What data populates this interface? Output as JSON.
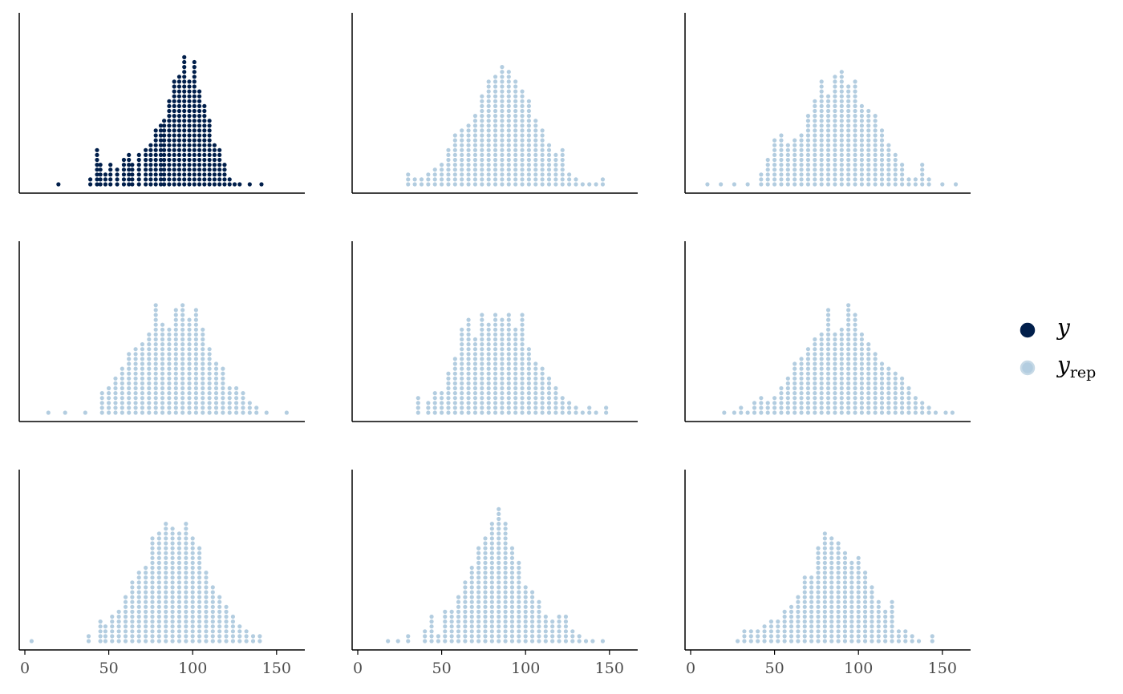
{
  "chart_data": {
    "type": "dotplot",
    "facet_grid": {
      "rows": 3,
      "cols": 3,
      "x_axis_shown_on_bottom_row": true
    },
    "xlim": [
      0,
      160
    ],
    "x_ticks": [
      "0",
      "50",
      "100",
      "150"
    ],
    "y_axis_labels": false,
    "grid": false,
    "legend_position": "right",
    "colors": {
      "y": "#011f4b",
      "y_rep": "#b3cde0",
      "axis": "#000000",
      "tick_text": "#4d4d4d"
    },
    "series": [
      {
        "name": "y",
        "legend_text": "y",
        "panels": [
          0
        ],
        "x": [
          20,
          39,
          43,
          45,
          48,
          51,
          55,
          59,
          62,
          64,
          68,
          72,
          75,
          78,
          81,
          83,
          86,
          89,
          92,
          95,
          98,
          101,
          104,
          107,
          110,
          113,
          116,
          119,
          122,
          125,
          128,
          134,
          141
        ],
        "counts": [
          1,
          2,
          8,
          5,
          3,
          5,
          4,
          6,
          7,
          5,
          7,
          8,
          9,
          12,
          13,
          14,
          18,
          22,
          23,
          27,
          22,
          26,
          20,
          17,
          14,
          9,
          8,
          5,
          2,
          1,
          1,
          1,
          1
        ]
      },
      {
        "name": "y_rep",
        "legend_text": "y",
        "legend_subscript": "rep",
        "panels": [
          1,
          2,
          3,
          4,
          5,
          6,
          7,
          8
        ],
        "replicates": [
          {
            "panel": 1,
            "x": [
              30,
              34,
              38,
              42,
              46,
              50,
              54,
              58,
              62,
              66,
              70,
              74,
              78,
              82,
              86,
              90,
              94,
              98,
              102,
              106,
              110,
              114,
              118,
              122,
              126,
              130,
              134,
              138,
              142,
              146
            ],
            "counts": [
              3,
              2,
              2,
              3,
              4,
              5,
              8,
              11,
              12,
              13,
              15,
              19,
              22,
              23,
              25,
              24,
              22,
              20,
              18,
              14,
              12,
              9,
              7,
              8,
              3,
              2,
              1,
              1,
              1,
              2
            ]
          },
          {
            "panel": 2,
            "x": [
              10,
              18,
              26,
              34,
              42,
              46,
              50,
              54,
              58,
              62,
              66,
              70,
              74,
              78,
              82,
              86,
              90,
              94,
              98,
              102,
              106,
              110,
              114,
              118,
              122,
              126,
              130,
              134,
              138,
              142,
              150,
              158
            ],
            "counts": [
              1,
              1,
              1,
              1,
              3,
              6,
              10,
              11,
              9,
              10,
              11,
              15,
              18,
              22,
              19,
              23,
              24,
              21,
              22,
              17,
              16,
              15,
              12,
              9,
              7,
              5,
              2,
              2,
              5,
              2,
              1,
              1
            ]
          },
          {
            "panel": 3,
            "x": [
              14,
              24,
              36,
              46,
              50,
              54,
              58,
              62,
              66,
              70,
              74,
              78,
              82,
              86,
              90,
              94,
              98,
              102,
              106,
              110,
              114,
              118,
              122,
              126,
              130,
              134,
              138,
              144,
              156
            ],
            "counts": [
              1,
              1,
              1,
              5,
              6,
              8,
              10,
              13,
              14,
              15,
              17,
              23,
              19,
              18,
              22,
              23,
              20,
              22,
              18,
              14,
              11,
              10,
              6,
              6,
              5,
              3,
              2,
              1,
              1
            ]
          },
          {
            "panel": 4,
            "x": [
              36,
              42,
              46,
              50,
              54,
              58,
              62,
              66,
              70,
              74,
              78,
              82,
              86,
              90,
              94,
              98,
              102,
              106,
              110,
              114,
              118,
              122,
              126,
              130,
              134,
              138,
              142,
              148
            ],
            "counts": [
              4,
              3,
              5,
              5,
              9,
              12,
              18,
              20,
              16,
              21,
              19,
              21,
              20,
              21,
              18,
              21,
              14,
              11,
              10,
              8,
              6,
              4,
              3,
              2,
              1,
              2,
              1,
              2
            ]
          },
          {
            "panel": 5,
            "x": [
              20,
              26,
              30,
              34,
              38,
              42,
              46,
              50,
              54,
              58,
              62,
              66,
              70,
              74,
              78,
              82,
              86,
              90,
              94,
              98,
              102,
              106,
              110,
              114,
              118,
              122,
              126,
              130,
              134,
              138,
              142,
              146,
              152,
              156
            ],
            "counts": [
              1,
              1,
              2,
              1,
              3,
              4,
              3,
              4,
              6,
              8,
              11,
              12,
              14,
              16,
              17,
              22,
              17,
              18,
              23,
              21,
              17,
              15,
              13,
              11,
              10,
              9,
              8,
              6,
              4,
              3,
              2,
              1,
              1,
              1
            ]
          },
          {
            "panel": 6,
            "x": [
              4,
              38,
              45,
              48,
              52,
              56,
              60,
              64,
              68,
              72,
              76,
              80,
              84,
              88,
              92,
              96,
              100,
              104,
              108,
              112,
              116,
              120,
              124,
              128,
              132,
              136,
              140
            ],
            "counts": [
              1,
              2,
              5,
              4,
              6,
              7,
              10,
              13,
              15,
              16,
              22,
              23,
              25,
              24,
              23,
              25,
              22,
              20,
              15,
              12,
              10,
              8,
              6,
              4,
              3,
              2,
              2
            ]
          },
          {
            "panel": 7,
            "x": [
              18,
              24,
              30,
              40,
              44,
              48,
              52,
              56,
              60,
              64,
              68,
              72,
              76,
              80,
              84,
              88,
              92,
              96,
              100,
              104,
              108,
              112,
              116,
              120,
              124,
              128,
              132,
              136,
              140,
              146
            ],
            "counts": [
              1,
              1,
              2,
              3,
              6,
              2,
              7,
              7,
              10,
              13,
              16,
              20,
              22,
              25,
              28,
              25,
              20,
              17,
              12,
              11,
              9,
              6,
              5,
              6,
              6,
              3,
              2,
              1,
              1,
              1
            ]
          },
          {
            "panel": 8,
            "x": [
              28,
              32,
              36,
              40,
              44,
              48,
              52,
              56,
              60,
              64,
              68,
              72,
              76,
              80,
              84,
              88,
              92,
              96,
              100,
              104,
              108,
              112,
              116,
              120,
              124,
              128,
              132,
              136,
              144
            ],
            "counts": [
              1,
              3,
              3,
              3,
              4,
              5,
              5,
              7,
              8,
              10,
              14,
              14,
              20,
              23,
              22,
              21,
              19,
              17,
              18,
              15,
              12,
              9,
              7,
              9,
              3,
              3,
              2,
              1,
              2
            ]
          }
        ]
      }
    ]
  }
}
